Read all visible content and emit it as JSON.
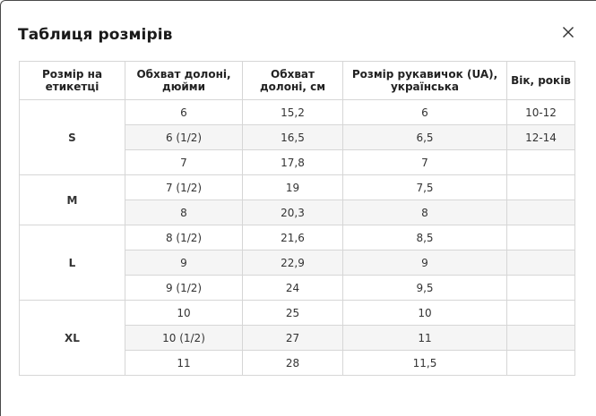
{
  "dialog": {
    "title": "Таблиця розмірів",
    "close_icon": "close-icon"
  },
  "table": {
    "headers": [
      "Розмір на етикетці",
      "Обхват долоні, дюйми",
      "Обхват долоні, см",
      "Розмір рукавичок (UA), українська",
      "Вік, років"
    ],
    "groups": [
      {
        "size": "S",
        "rows": [
          [
            "6",
            "15,2",
            "6",
            "10-12"
          ],
          [
            "6 (1/2)",
            "16,5",
            "6,5",
            "12-14"
          ],
          [
            "7",
            "17,8",
            "7",
            ""
          ]
        ]
      },
      {
        "size": "M",
        "rows": [
          [
            "7 (1/2)",
            "19",
            "7,5",
            ""
          ],
          [
            "8",
            "20,3",
            "8",
            ""
          ]
        ]
      },
      {
        "size": "L",
        "rows": [
          [
            "8 (1/2)",
            "21,6",
            "8,5",
            ""
          ],
          [
            "9",
            "22,9",
            "9",
            ""
          ],
          [
            "9 (1/2)",
            "24",
            "9,5",
            ""
          ]
        ]
      },
      {
        "size": "XL",
        "rows": [
          [
            "10",
            "25",
            "10",
            ""
          ],
          [
            "10 (1/2)",
            "27",
            "11",
            ""
          ],
          [
            "11",
            "28",
            "11,5",
            ""
          ]
        ]
      }
    ]
  }
}
